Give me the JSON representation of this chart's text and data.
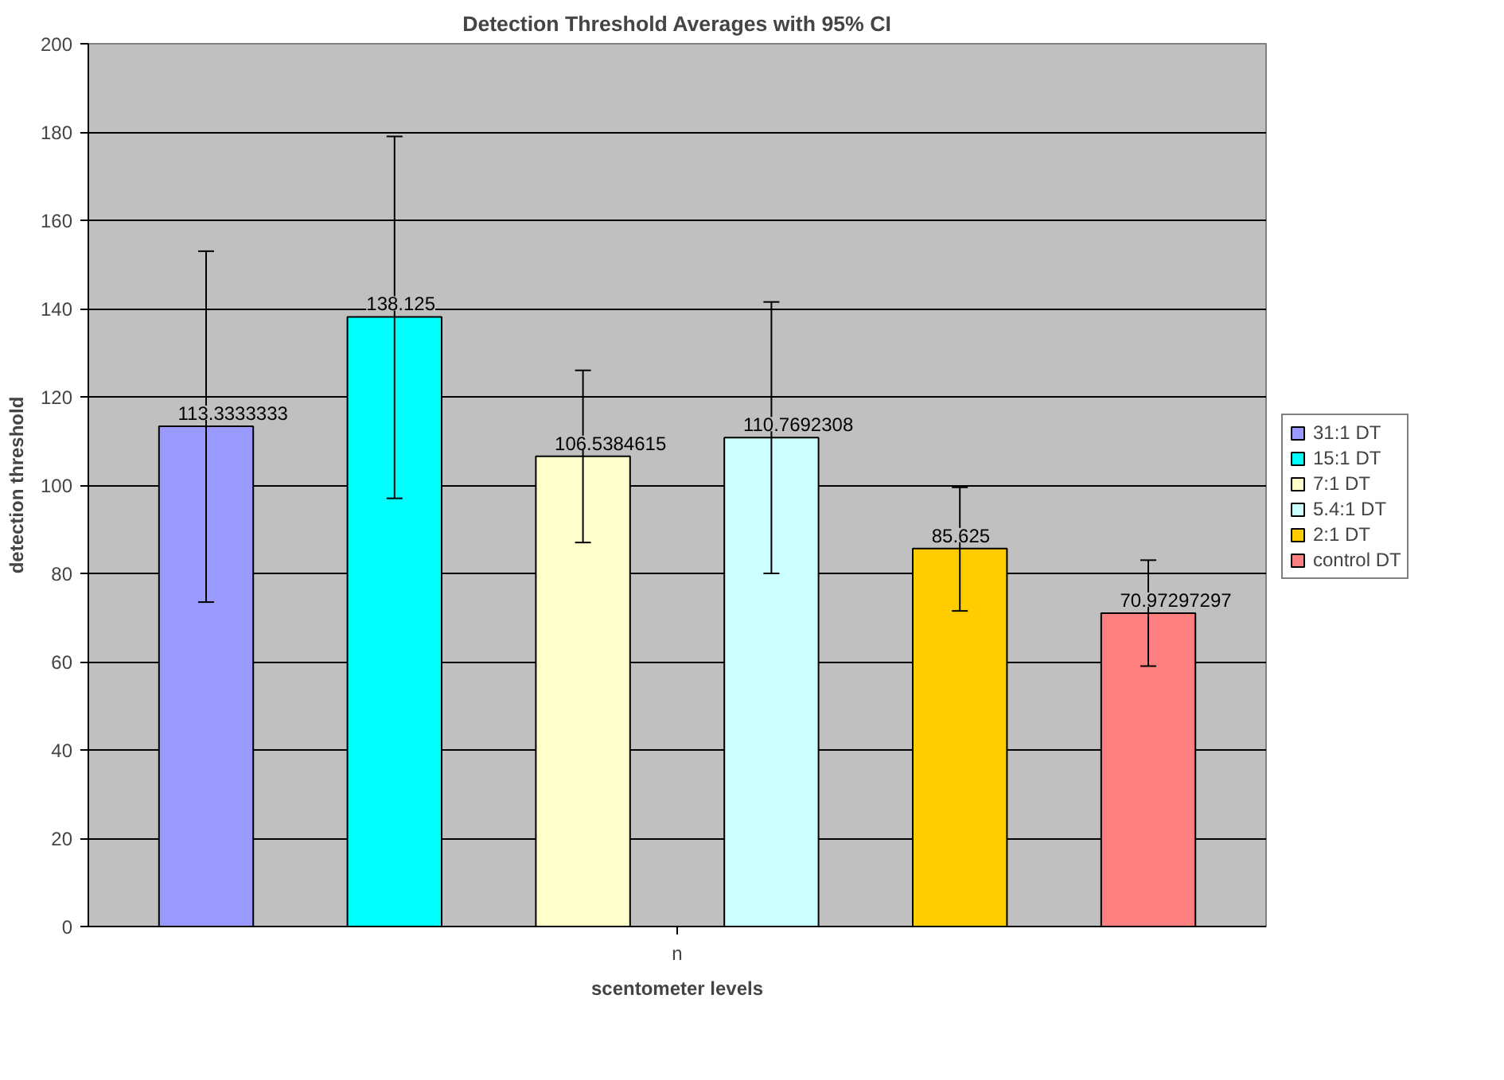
{
  "chart_data": {
    "type": "bar",
    "title": "Detection Threshold Averages with 95% CI",
    "xlabel": "scentometer levels",
    "ylabel": "detection threshold",
    "categories": [
      "n"
    ],
    "series": [
      {
        "name": "31:1 DT",
        "color": "#9999ff",
        "values": [
          113.3333333
        ],
        "errors": [
          [
            73.5,
            153
          ]
        ]
      },
      {
        "name": "15:1 DT",
        "color": "#00ffff",
        "values": [
          138.125
        ],
        "errors": [
          [
            97,
            179
          ]
        ]
      },
      {
        "name": "7:1 DT",
        "color": "#ffffcc",
        "values": [
          106.5384615
        ],
        "errors": [
          [
            87,
            126
          ]
        ]
      },
      {
        "name": "5.4:1 DT",
        "color": "#ccffff",
        "values": [
          110.7692308
        ],
        "errors": [
          [
            80,
            141.5
          ]
        ]
      },
      {
        "name": "2:1 DT",
        "color": "#ffcc00",
        "values": [
          85.625
        ],
        "errors": [
          [
            71.5,
            99.5
          ]
        ]
      },
      {
        "name": "control DT",
        "color": "#ff8080",
        "values": [
          70.97297297
        ],
        "errors": [
          [
            59,
            83
          ]
        ]
      }
    ],
    "ylim": [
      0,
      200
    ],
    "yticks": [
      0,
      20,
      40,
      60,
      80,
      100,
      120,
      140,
      160,
      180,
      200
    ],
    "grid": "y",
    "legend": "right",
    "data_labels": true
  }
}
